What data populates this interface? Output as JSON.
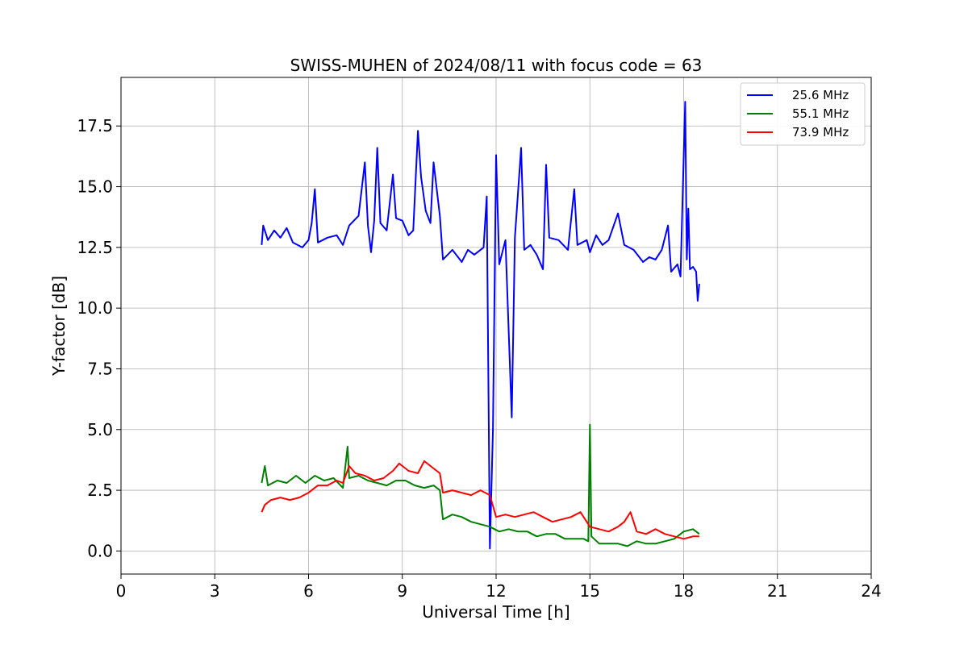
{
  "chart_data": {
    "type": "line",
    "title": "SWISS-MUHEN of 2024/08/11 with focus code = 63",
    "xlabel": "Universal Time [h]",
    "ylabel": "Y-factor [dB]",
    "xlim": [
      0,
      24
    ],
    "ylim": [
      -0.95,
      19.5
    ],
    "xticks": [
      0,
      3,
      6,
      9,
      12,
      15,
      18,
      21,
      24
    ],
    "xtick_labels": [
      "0",
      "3",
      "6",
      "9",
      "12",
      "15",
      "18",
      "21",
      "24"
    ],
    "yticks": [
      0,
      2.5,
      5,
      7.5,
      10,
      12.5,
      15,
      17.5
    ],
    "ytick_labels": [
      "0.0",
      "2.5",
      "5.0",
      "7.5",
      "10.0",
      "12.5",
      "15.0",
      "17.5"
    ],
    "grid": true,
    "legend_position": "top-right",
    "series": [
      {
        "name": "25.6 MHz",
        "color": "#0000ff",
        "points": [
          [
            4.5,
            12.6
          ],
          [
            4.55,
            13.4
          ],
          [
            4.7,
            12.8
          ],
          [
            4.9,
            13.2
          ],
          [
            5.1,
            12.9
          ],
          [
            5.3,
            13.3
          ],
          [
            5.5,
            12.7
          ],
          [
            5.8,
            12.5
          ],
          [
            6.0,
            12.8
          ],
          [
            6.1,
            13.5
          ],
          [
            6.2,
            14.9
          ],
          [
            6.3,
            12.7
          ],
          [
            6.6,
            12.9
          ],
          [
            6.9,
            13.0
          ],
          [
            7.1,
            12.6
          ],
          [
            7.3,
            13.4
          ],
          [
            7.6,
            13.8
          ],
          [
            7.8,
            16.0
          ],
          [
            7.9,
            13.4
          ],
          [
            8.0,
            12.3
          ],
          [
            8.1,
            13.6
          ],
          [
            8.2,
            16.6
          ],
          [
            8.3,
            13.5
          ],
          [
            8.5,
            13.2
          ],
          [
            8.7,
            15.5
          ],
          [
            8.8,
            13.7
          ],
          [
            9.0,
            13.6
          ],
          [
            9.2,
            13.0
          ],
          [
            9.35,
            13.2
          ],
          [
            9.5,
            17.3
          ],
          [
            9.6,
            15.4
          ],
          [
            9.75,
            14.0
          ],
          [
            9.9,
            13.5
          ],
          [
            10.0,
            16.0
          ],
          [
            10.2,
            13.8
          ],
          [
            10.3,
            12.0
          ],
          [
            10.6,
            12.4
          ],
          [
            10.9,
            11.9
          ],
          [
            11.1,
            12.4
          ],
          [
            11.3,
            12.2
          ],
          [
            11.6,
            12.5
          ],
          [
            11.7,
            14.6
          ],
          [
            11.8,
            0.1
          ],
          [
            11.9,
            5.0
          ],
          [
            12.0,
            16.3
          ],
          [
            12.1,
            11.8
          ],
          [
            12.3,
            12.8
          ],
          [
            12.5,
            5.5
          ],
          [
            12.6,
            12.9
          ],
          [
            12.8,
            16.6
          ],
          [
            12.9,
            12.4
          ],
          [
            13.1,
            12.6
          ],
          [
            13.3,
            12.2
          ],
          [
            13.5,
            11.6
          ],
          [
            13.6,
            15.9
          ],
          [
            13.7,
            12.9
          ],
          [
            14.0,
            12.8
          ],
          [
            14.3,
            12.4
          ],
          [
            14.5,
            14.9
          ],
          [
            14.6,
            12.6
          ],
          [
            14.9,
            12.8
          ],
          [
            15.0,
            12.3
          ],
          [
            15.2,
            13.0
          ],
          [
            15.4,
            12.6
          ],
          [
            15.6,
            12.8
          ],
          [
            15.9,
            13.9
          ],
          [
            16.1,
            12.6
          ],
          [
            16.4,
            12.4
          ],
          [
            16.7,
            11.9
          ],
          [
            16.9,
            12.1
          ],
          [
            17.1,
            12.0
          ],
          [
            17.3,
            12.4
          ],
          [
            17.5,
            13.4
          ],
          [
            17.6,
            11.5
          ],
          [
            17.8,
            11.8
          ],
          [
            17.9,
            11.3
          ],
          [
            18.05,
            18.5
          ],
          [
            18.1,
            12.0
          ],
          [
            18.15,
            14.1
          ],
          [
            18.2,
            11.6
          ],
          [
            18.3,
            11.7
          ],
          [
            18.4,
            11.5
          ],
          [
            18.45,
            10.3
          ],
          [
            18.5,
            11.0
          ]
        ]
      },
      {
        "name": "55.1 MHz",
        "color": "#008000",
        "points": [
          [
            4.5,
            2.8
          ],
          [
            4.6,
            3.5
          ],
          [
            4.7,
            2.7
          ],
          [
            5.0,
            2.9
          ],
          [
            5.3,
            2.8
          ],
          [
            5.6,
            3.1
          ],
          [
            5.9,
            2.8
          ],
          [
            6.2,
            3.1
          ],
          [
            6.5,
            2.9
          ],
          [
            6.8,
            3.0
          ],
          [
            7.1,
            2.6
          ],
          [
            7.25,
            4.3
          ],
          [
            7.3,
            3.0
          ],
          [
            7.6,
            3.1
          ],
          [
            7.9,
            2.9
          ],
          [
            8.2,
            2.8
          ],
          [
            8.5,
            2.7
          ],
          [
            8.8,
            2.9
          ],
          [
            9.1,
            2.9
          ],
          [
            9.4,
            2.7
          ],
          [
            9.7,
            2.6
          ],
          [
            10.0,
            2.7
          ],
          [
            10.2,
            2.5
          ],
          [
            10.3,
            1.3
          ],
          [
            10.6,
            1.5
          ],
          [
            10.9,
            1.4
          ],
          [
            11.2,
            1.2
          ],
          [
            11.5,
            1.1
          ],
          [
            11.8,
            1.0
          ],
          [
            12.1,
            0.8
          ],
          [
            12.4,
            0.9
          ],
          [
            12.7,
            0.8
          ],
          [
            13.0,
            0.8
          ],
          [
            13.3,
            0.6
          ],
          [
            13.6,
            0.7
          ],
          [
            13.9,
            0.7
          ],
          [
            14.2,
            0.5
          ],
          [
            14.5,
            0.5
          ],
          [
            14.8,
            0.5
          ],
          [
            14.95,
            0.4
          ],
          [
            15.0,
            5.2
          ],
          [
            15.05,
            0.6
          ],
          [
            15.3,
            0.3
          ],
          [
            15.6,
            0.3
          ],
          [
            15.9,
            0.3
          ],
          [
            16.2,
            0.2
          ],
          [
            16.5,
            0.4
          ],
          [
            16.8,
            0.3
          ],
          [
            17.1,
            0.3
          ],
          [
            17.4,
            0.4
          ],
          [
            17.7,
            0.5
          ],
          [
            18.0,
            0.8
          ],
          [
            18.3,
            0.9
          ],
          [
            18.5,
            0.7
          ]
        ]
      },
      {
        "name": "73.9 MHz",
        "color": "#ff0000",
        "points": [
          [
            4.5,
            1.6
          ],
          [
            4.6,
            1.9
          ],
          [
            4.8,
            2.1
          ],
          [
            5.1,
            2.2
          ],
          [
            5.4,
            2.1
          ],
          [
            5.7,
            2.2
          ],
          [
            6.0,
            2.4
          ],
          [
            6.3,
            2.7
          ],
          [
            6.6,
            2.7
          ],
          [
            6.9,
            2.9
          ],
          [
            7.1,
            2.8
          ],
          [
            7.3,
            3.5
          ],
          [
            7.5,
            3.2
          ],
          [
            7.8,
            3.1
          ],
          [
            8.1,
            2.9
          ],
          [
            8.4,
            3.0
          ],
          [
            8.7,
            3.3
          ],
          [
            8.9,
            3.6
          ],
          [
            9.2,
            3.3
          ],
          [
            9.5,
            3.2
          ],
          [
            9.7,
            3.7
          ],
          [
            10.0,
            3.4
          ],
          [
            10.2,
            3.2
          ],
          [
            10.3,
            2.4
          ],
          [
            10.6,
            2.5
          ],
          [
            10.9,
            2.4
          ],
          [
            11.2,
            2.3
          ],
          [
            11.5,
            2.5
          ],
          [
            11.8,
            2.3
          ],
          [
            12.0,
            1.4
          ],
          [
            12.3,
            1.5
          ],
          [
            12.6,
            1.4
          ],
          [
            12.9,
            1.5
          ],
          [
            13.2,
            1.6
          ],
          [
            13.5,
            1.4
          ],
          [
            13.8,
            1.2
          ],
          [
            14.1,
            1.3
          ],
          [
            14.4,
            1.4
          ],
          [
            14.7,
            1.6
          ],
          [
            15.0,
            1.0
          ],
          [
            15.3,
            0.9
          ],
          [
            15.6,
            0.8
          ],
          [
            15.9,
            1.0
          ],
          [
            16.1,
            1.2
          ],
          [
            16.3,
            1.6
          ],
          [
            16.5,
            0.8
          ],
          [
            16.8,
            0.7
          ],
          [
            17.1,
            0.9
          ],
          [
            17.4,
            0.7
          ],
          [
            17.7,
            0.6
          ],
          [
            18.0,
            0.5
          ],
          [
            18.3,
            0.6
          ],
          [
            18.5,
            0.6
          ]
        ]
      }
    ]
  }
}
